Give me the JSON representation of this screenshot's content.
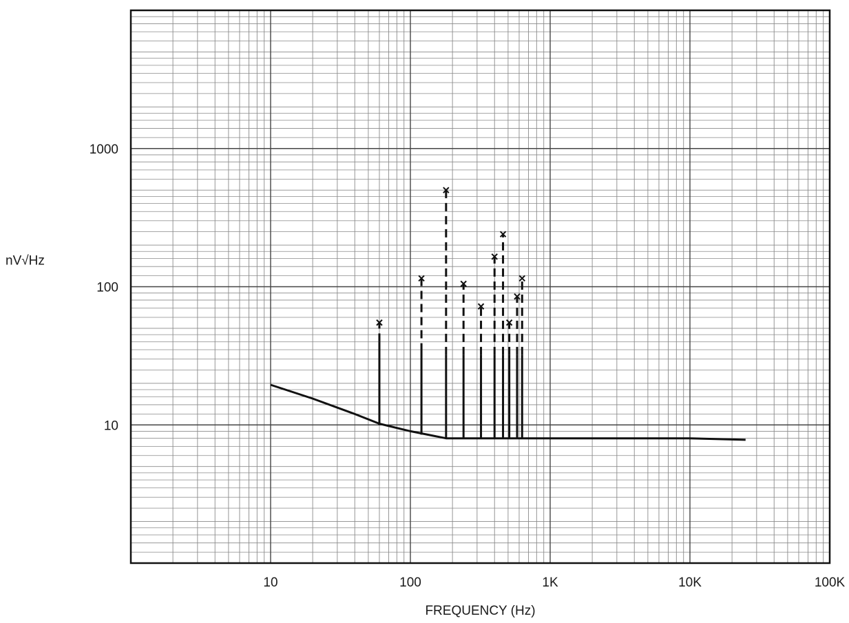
{
  "chart_data": {
    "type": "line",
    "title": "",
    "xlabel": "FREQUENCY (Hz)",
    "ylabel": "nV√Hz",
    "x_scale": "log",
    "y_scale": "log",
    "xlim": [
      1,
      100000
    ],
    "ylim": [
      1,
      10000
    ],
    "grid": true,
    "x_ticks": [
      {
        "value": 10,
        "label": "10"
      },
      {
        "value": 100,
        "label": "100"
      },
      {
        "value": 1000,
        "label": "1K"
      },
      {
        "value": 10000,
        "label": "10K"
      },
      {
        "value": 100000,
        "label": "100K"
      }
    ],
    "y_ticks": [
      {
        "value": 10,
        "label": "10"
      },
      {
        "value": 100,
        "label": "100"
      },
      {
        "value": 1000,
        "label": "1000"
      }
    ],
    "noise_floor": {
      "x": [
        10,
        20,
        40,
        60,
        100,
        150,
        180,
        300,
        1000,
        10000,
        25000
      ],
      "y": [
        19.5,
        15.5,
        12,
        10.2,
        9,
        8.3,
        8,
        8,
        8,
        8,
        7.8
      ]
    },
    "spurs": [
      {
        "x": 60,
        "base": 10,
        "peak": 55
      },
      {
        "x": 120,
        "base": 8.5,
        "peak": 115
      },
      {
        "x": 180,
        "base": 8,
        "peak": 500
      },
      {
        "x": 240,
        "base": 8,
        "peak": 105
      },
      {
        "x": 320,
        "base": 8,
        "peak": 72
      },
      {
        "x": 400,
        "base": 8,
        "peak": 165
      },
      {
        "x": 460,
        "base": 8,
        "peak": 240
      },
      {
        "x": 510,
        "base": 8,
        "peak": 55
      },
      {
        "x": 580,
        "base": 8,
        "peak": 85
      },
      {
        "x": 630,
        "base": 8,
        "peak": 115
      }
    ]
  }
}
